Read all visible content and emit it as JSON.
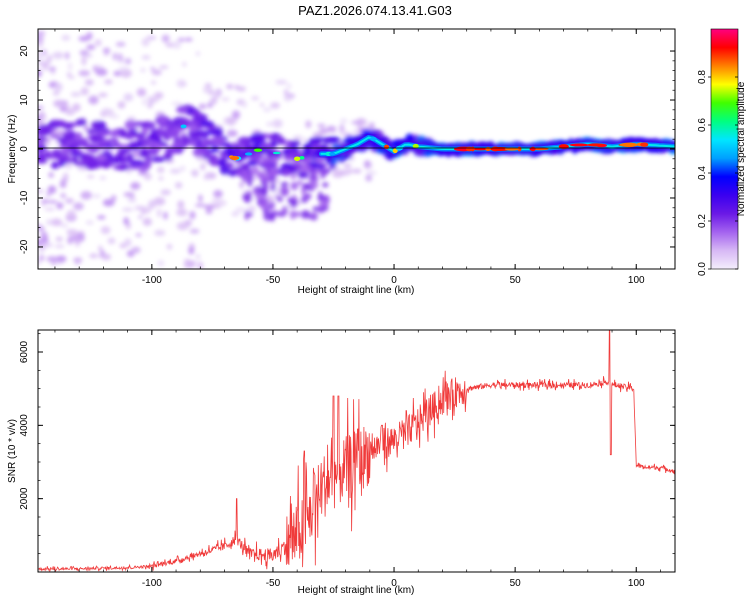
{
  "title": "PAZ1.2026.074.13.41.G03",
  "colors": {
    "snr_line": "#f03a3a",
    "axis": "#000000",
    "background": "#ffffff"
  },
  "chart_data": [
    {
      "type": "heatmap",
      "name": "spectrogram",
      "xlabel": "Height of straight line (km)",
      "ylabel": "Frequency (Hz)",
      "xlim": [
        -147,
        116
      ],
      "ylim": [
        -24.5,
        24.5
      ],
      "x_ticks": [
        -100,
        -50,
        0,
        50,
        100
      ],
      "x_tick_labels": [
        "-100",
        "-50",
        "0",
        "50",
        "100"
      ],
      "y_ticks": [
        -20,
        -10,
        0,
        10,
        20
      ],
      "y_tick_labels": [
        "-20",
        "-10",
        "0",
        "10",
        "20"
      ],
      "ridge": {
        "description": "dominant spectral ridge frequency vs height",
        "x": [
          -145,
          -130,
          -115,
          -100,
          -90,
          -85,
          -80,
          -75,
          -70,
          -65,
          -60,
          -55,
          -50,
          -45,
          -40,
          -35,
          -30,
          -25,
          -20,
          -15,
          -10,
          -5,
          0,
          5,
          10,
          20,
          40,
          60,
          80,
          90,
          100,
          116
        ],
        "y": [
          0.5,
          1,
          0.8,
          0.5,
          4,
          5,
          3,
          1,
          -1,
          -2,
          -1,
          0,
          -0.5,
          -1.5,
          -2,
          -1.5,
          -1,
          -1,
          0,
          1,
          2.5,
          1,
          -0.5,
          1,
          0.5,
          0,
          0,
          0,
          1,
          0.5,
          1,
          0.5
        ]
      },
      "colorbar": {
        "label": "Normalized spectral amplitude",
        "ticks": [
          0.0,
          0.2,
          0.4,
          0.6,
          0.8
        ],
        "tick_labels": [
          "0.0",
          "0.2",
          "0.4",
          "0.6",
          "0.8"
        ],
        "range": [
          0,
          1
        ],
        "stops": [
          "#f4eefc",
          "#d7b8f5",
          "#a463ef",
          "#6a19e6",
          "#3a00f0",
          "#0000ff",
          "#00a0ff",
          "#00e6ff",
          "#00ff80",
          "#40ff00",
          "#ffff00",
          "#ff8000",
          "#ff0000",
          "#ff0080"
        ]
      }
    },
    {
      "type": "line",
      "name": "snr",
      "xlabel": "Height of straight line (km)",
      "ylabel": "SNR (10 * v/v)",
      "xlim": [
        -147,
        116
      ],
      "ylim": [
        0,
        6600
      ],
      "x_ticks": [
        -100,
        -50,
        0,
        50,
        100
      ],
      "x_tick_labels": [
        "-100",
        "-50",
        "0",
        "50",
        "100"
      ],
      "y_ticks": [
        2000,
        4000,
        6000
      ],
      "y_tick_labels": [
        "2000",
        "4000",
        "6000"
      ],
      "series": [
        {
          "name": "SNR",
          "x": [
            -147,
            -130,
            -110,
            -100,
            -90,
            -80,
            -70,
            -65,
            -60,
            -50,
            -45,
            -40,
            -35,
            -30,
            -25,
            -20,
            -15,
            -10,
            -5,
            0,
            5,
            10,
            15,
            20,
            25,
            30,
            40,
            50,
            60,
            70,
            80,
            85,
            88,
            90,
            92,
            95,
            99,
            100,
            105,
            110,
            116
          ],
          "y": [
            80,
            90,
            120,
            160,
            300,
            500,
            700,
            900,
            500,
            450,
            700,
            1000,
            1500,
            2300,
            2600,
            2800,
            3000,
            3300,
            3500,
            3600,
            3800,
            4100,
            4400,
            4700,
            4900,
            5000,
            5100,
            5100,
            5100,
            5100,
            5100,
            5150,
            5200,
            5100,
            5100,
            5050,
            5000,
            2900,
            2850,
            2850,
            2750
          ]
        }
      ],
      "spikes": [
        {
          "x": -65,
          "y": 2000
        },
        {
          "x": -37,
          "y": 3300
        },
        {
          "x": -33,
          "y": 2700
        },
        {
          "x": -25,
          "y": 4800
        },
        {
          "x": -23,
          "y": 4800
        },
        {
          "x": -15,
          "y": 3900
        },
        {
          "x": -5,
          "y": 4000
        },
        {
          "x": 5,
          "y": 4400
        },
        {
          "x": 89,
          "y": 6600
        },
        {
          "x": 89.5,
          "y": 3200
        }
      ]
    }
  ]
}
